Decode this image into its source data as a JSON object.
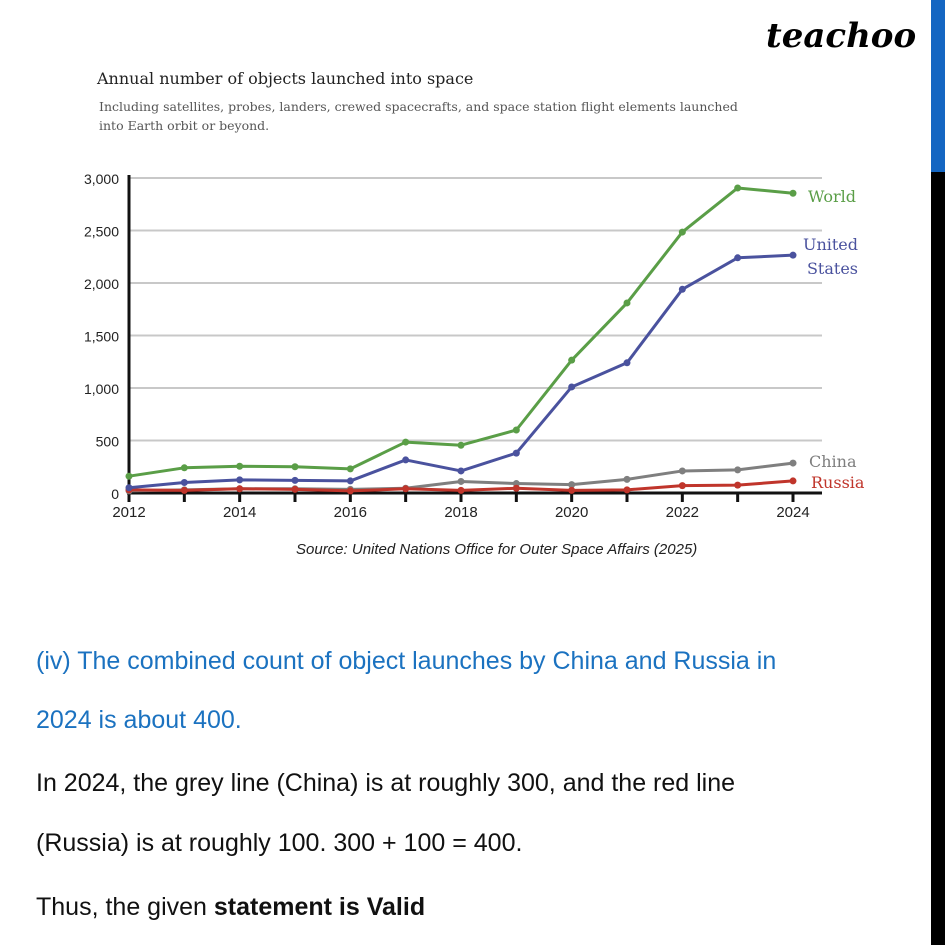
{
  "logo": "teachoo",
  "colors": {
    "world": "#5a9e47",
    "united_states": "#4a529e",
    "china": "#7f7f7f",
    "russia": "#c0352b",
    "question": "#1b72c0",
    "scrollbar_thumb": "#1466c2"
  },
  "chart_data": {
    "type": "line",
    "title": "Annual number of objects launched into space",
    "subtitle": "Including satellites, probes, landers, crewed spacecrafts, and space station flight elements launched into Earth orbit or beyond.",
    "source": "Source: United Nations Office for Outer Space Affairs (2025)",
    "x": [
      2012,
      2013,
      2014,
      2015,
      2016,
      2017,
      2018,
      2019,
      2020,
      2021,
      2022,
      2023,
      2024
    ],
    "x_tick_labels": [
      "2012",
      "2014",
      "2016",
      "2018",
      "2020",
      "2022",
      "2024"
    ],
    "y_tick_labels": [
      "0",
      "500",
      "1,000",
      "1,500",
      "2,000",
      "2,500",
      "3,000"
    ],
    "ylim": [
      0,
      3000
    ],
    "grid": true,
    "legend": "inline labels at line ends",
    "series": [
      {
        "name": "World",
        "values": [
          160,
          240,
          255,
          250,
          230,
          485,
          455,
          600,
          1265,
          1810,
          2485,
          2905,
          2855
        ]
      },
      {
        "name": "United States",
        "name_lines": [
          "United",
          "States"
        ],
        "values": [
          50,
          100,
          125,
          120,
          115,
          315,
          210,
          380,
          1010,
          1240,
          1940,
          2240,
          2265
        ]
      },
      {
        "name": "China",
        "values": [
          20,
          30,
          40,
          40,
          35,
          45,
          110,
          90,
          80,
          130,
          210,
          220,
          285
        ]
      },
      {
        "name": "Russia",
        "values": [
          30,
          25,
          40,
          35,
          20,
          40,
          25,
          45,
          25,
          30,
          70,
          75,
          115
        ]
      }
    ]
  },
  "text": {
    "question_line1": "(iv) The combined count of object launches by China and Russia in",
    "question_line2": "2024 is about 400.",
    "answer_line1": "In 2024, the grey line (China) is at roughly 300, and the red line",
    "answer_line2": "(Russia) is at roughly 100. 300 + 100 = 400.",
    "conclusion_prefix": "Thus, the given ",
    "conclusion_bold": "statement is Valid"
  }
}
